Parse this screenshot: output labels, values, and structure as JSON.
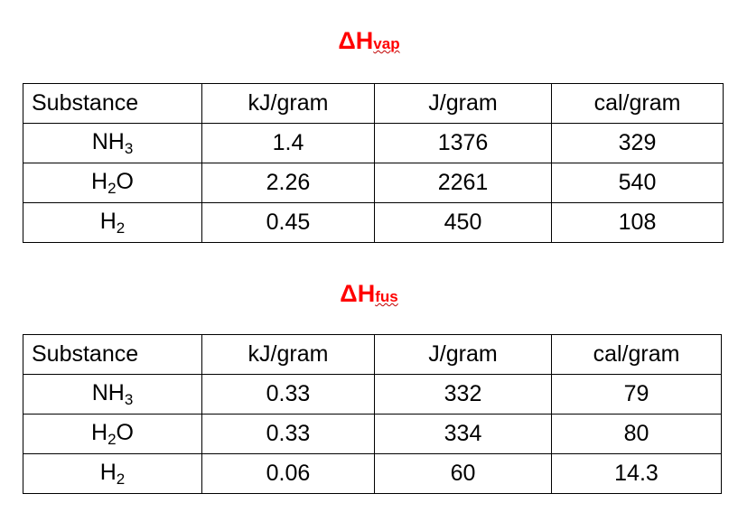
{
  "tables": [
    {
      "title": {
        "main": "ΔH",
        "sub": "vap"
      },
      "header": [
        "Substance",
        "kJ/gram",
        "J/gram",
        "cal/gram"
      ],
      "rows": [
        [
          {
            "base": "NH",
            "sub": "3"
          },
          "1.4",
          "1376",
          "329"
        ],
        [
          {
            "base": "H",
            "sub": "2",
            "tail": "O"
          },
          "2.26",
          "2261",
          "540"
        ],
        [
          {
            "base": "H",
            "sub": "2"
          },
          "0.45",
          "450",
          "108"
        ]
      ]
    },
    {
      "title": {
        "main": "ΔH",
        "sub": "fus"
      },
      "header": [
        "Substance",
        "kJ/gram",
        "J/gram",
        "cal/gram"
      ],
      "rows": [
        [
          {
            "base": "NH",
            "sub": "3"
          },
          "0.33",
          "332",
          "79"
        ],
        [
          {
            "base": "H",
            "sub": "2",
            "tail": "O"
          },
          "0.33",
          "334",
          "80"
        ],
        [
          {
            "base": "H",
            "sub": "2"
          },
          "0.06",
          "60",
          "14.3"
        ]
      ]
    }
  ]
}
